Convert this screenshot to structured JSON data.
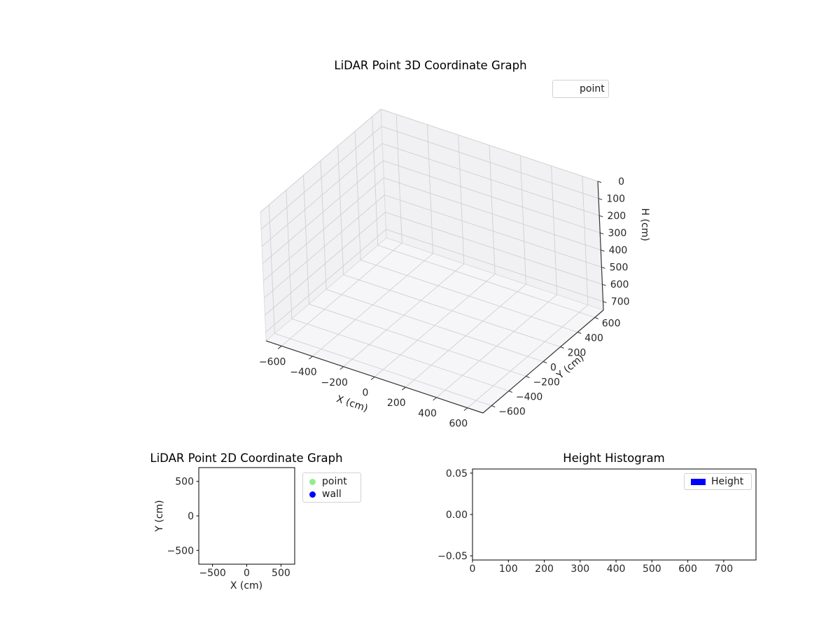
{
  "figure": {
    "background": "#ffffff"
  },
  "chart_data": [
    {
      "type": "scatter",
      "subtype": "3d",
      "title": "LiDAR Point 3D Coordinate Graph",
      "xlabel": "X (cm)",
      "ylabel": "Y (cm)",
      "zlabel": "H (cm)",
      "xlim": [
        -700,
        700
      ],
      "ylim": [
        -700,
        700
      ],
      "zlim": [
        0,
        750
      ],
      "z_axis_inverted": true,
      "grid": true,
      "xticks": [
        -600,
        -400,
        -200,
        0,
        200,
        400,
        600
      ],
      "yticks": [
        -600,
        -400,
        -200,
        0,
        200,
        400,
        600
      ],
      "zticks": [
        0,
        100,
        200,
        300,
        400,
        500,
        600,
        700
      ],
      "xticklabels": [
        "−600",
        "−400",
        "−200",
        "0",
        "200",
        "400",
        "600"
      ],
      "yticklabels": [
        "−600",
        "−400",
        "−200",
        "0",
        "200",
        "400",
        "600"
      ],
      "zticklabels": [
        "0",
        "100",
        "200",
        "300",
        "400",
        "500",
        "600",
        "700"
      ],
      "legend": {
        "position": "upper right",
        "entries": [
          {
            "label": "point",
            "marker": "none"
          }
        ]
      },
      "points": []
    },
    {
      "type": "scatter",
      "subtype": "2d",
      "title": "LiDAR Point 2D Coordinate Graph",
      "xlabel": "X (cm)",
      "ylabel": "Y (cm)",
      "xlim": [
        -700,
        700
      ],
      "ylim": [
        -700,
        700
      ],
      "grid": false,
      "xticks": [
        -500,
        0,
        500
      ],
      "yticks": [
        -500,
        0,
        500
      ],
      "xticklabels": [
        "−500",
        "0",
        "500"
      ],
      "yticklabels": [
        "−500",
        "0",
        "500"
      ],
      "legend": {
        "position": "outside upper right",
        "entries": [
          {
            "label": "point",
            "color": "#90ee90"
          },
          {
            "label": "wall",
            "color": "#0000ff"
          }
        ]
      },
      "points": []
    },
    {
      "type": "bar",
      "subtype": "histogram",
      "title": "Height Histogram",
      "xlabel": "",
      "ylabel": "",
      "xlim": [
        0,
        790
      ],
      "ylim": [
        -0.055,
        0.055
      ],
      "grid": false,
      "xticks": [
        0,
        100,
        200,
        300,
        400,
        500,
        600,
        700
      ],
      "yticks": [
        -0.05,
        0,
        0.05
      ],
      "xticklabels": [
        "0",
        "100",
        "200",
        "300",
        "400",
        "500",
        "600",
        "700"
      ],
      "yticklabels": [
        "−0.05",
        "0.00",
        "0.05"
      ],
      "legend": {
        "position": "upper right",
        "entries": [
          {
            "label": "Height",
            "color": "#0000ff"
          }
        ]
      },
      "values": []
    }
  ]
}
